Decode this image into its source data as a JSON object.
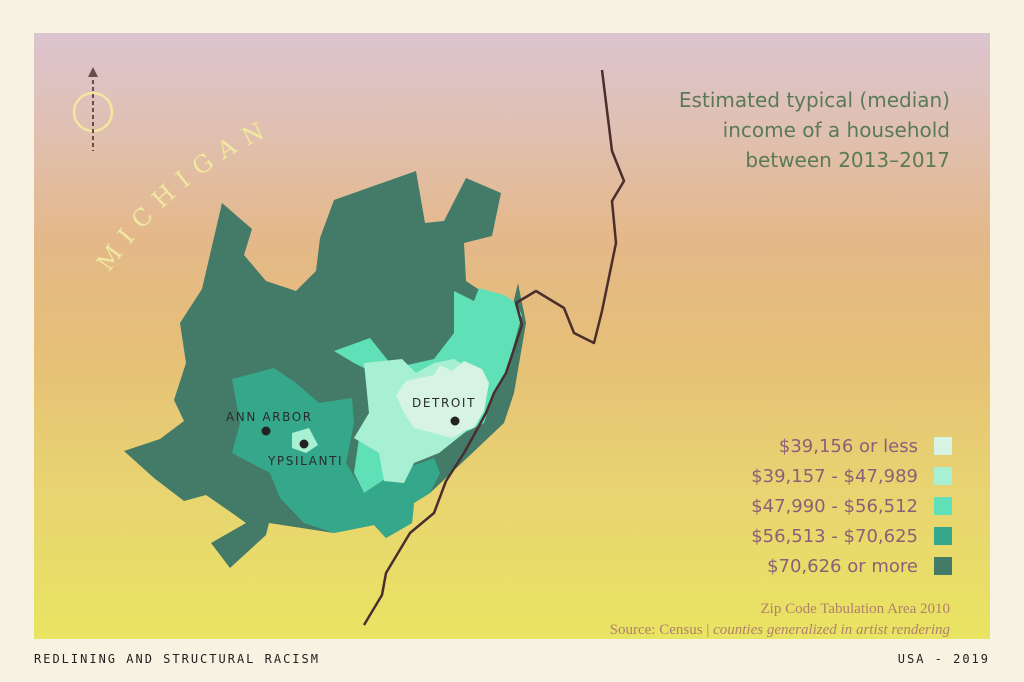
{
  "title": {
    "line1": "Estimated typical (median)",
    "line2": "income of a household",
    "line3": "between 2013–2017"
  },
  "state_label": "MICHIGAN",
  "cities": {
    "ann_arbor": "ANN ARBOR",
    "ypsilanti": "YPSILANTI",
    "detroit": "DETROIT"
  },
  "legend": [
    {
      "label": "$39,156 or less",
      "color": "#d6f3e3"
    },
    {
      "label": "$39,157 - $47,989",
      "color": "#a8f0d3"
    },
    {
      "label": "$47,990 - $56,512",
      "color": "#5fe0b7"
    },
    {
      "label": "$56,513 - $70,625",
      "color": "#35a88b"
    },
    {
      "label": "$70,626 or more",
      "color": "#437a68"
    }
  ],
  "source": {
    "line1": "Zip Code Tabulation Area 2010",
    "line2_prefix": "Source: Census | ",
    "line2_italic": "counties generalized in artist rendering"
  },
  "footer": {
    "left": "REDLINING AND STRUCTURAL RACISM",
    "right": "USA - 2019"
  },
  "icons": {
    "compass": "north-arrow-compass-icon"
  }
}
